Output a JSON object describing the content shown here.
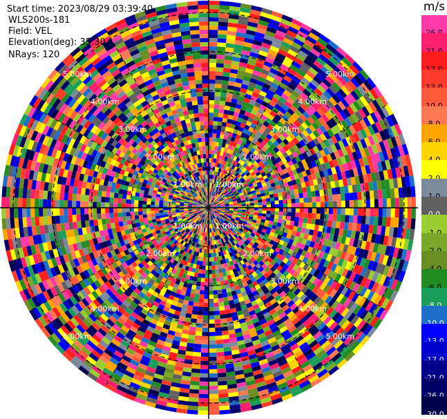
{
  "info": {
    "start_time": "Start time: 2023/08/29 03:39:40",
    "radar": "WLS200s-181",
    "field": "Field: VEL",
    "elevation": "Elevation(deg): 35.30",
    "nrays": "NRays: 120"
  },
  "colorbar": {
    "title": "m/s",
    "levels": [
      {
        "label": "26.0",
        "color": "#ff3aa8"
      },
      {
        "label": "21.0",
        "color": "#ff1f6e"
      },
      {
        "label": "17.0",
        "color": "#ff1c1c"
      },
      {
        "label": "13.0",
        "color": "#ff3b2a"
      },
      {
        "label": "10.0",
        "color": "#ff5a3c"
      },
      {
        "label": "8.0",
        "color": "#ff7a52"
      },
      {
        "label": "6.0",
        "color": "#ffa500"
      },
      {
        "label": "4.0",
        "color": "#ffd500"
      },
      {
        "label": "2.0",
        "color": "#ffff00"
      },
      {
        "label": "1.0",
        "color": "#7a8a9a"
      },
      {
        "label": "0.0",
        "color": "#606060"
      },
      {
        "label": "-1.0",
        "color": "#9acd32"
      },
      {
        "label": "-2.0",
        "color": "#7aa82a"
      },
      {
        "label": "-4.0",
        "color": "#6b8e23"
      },
      {
        "label": "-6.0",
        "color": "#228b22"
      },
      {
        "label": "-8.0",
        "color": "#1a9e5a"
      },
      {
        "label": "-10.0",
        "color": "#1e6fc8"
      },
      {
        "label": "-13.0",
        "color": "#0000ff"
      },
      {
        "label": "-17.0",
        "color": "#0000cd"
      },
      {
        "label": "-21.0",
        "color": "#00008b"
      },
      {
        "label": "-26.0",
        "color": "#000066"
      },
      {
        "label": "-30.0",
        "color": "#00004a"
      }
    ]
  },
  "chart_data": {
    "type": "heatmap",
    "projection": "polar-ppi",
    "nrays": 120,
    "range_rings_km": [
      "1.00km",
      "2.00km",
      "3.00km",
      "4.00km",
      "5.00km"
    ],
    "field": "VEL",
    "units": "m/s",
    "vmin": -30.0,
    "vmax": 26.0
  }
}
